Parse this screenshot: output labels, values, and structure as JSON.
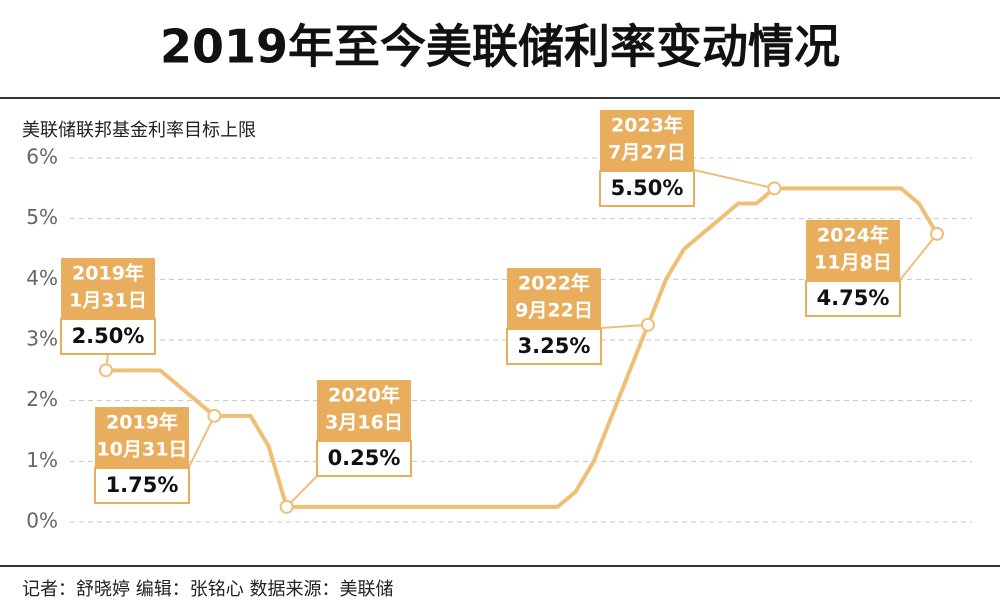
{
  "chart_data": {
    "type": "line",
    "title": "2019年至今美联储利率变动情况",
    "ylabel": "美联储联邦基金利率目标上限",
    "footer": "记者：舒晓婷  编辑：张铭心  数据来源：美联储",
    "categories": [
      null,
      null,
      null,
      null,
      null,
      null,
      null,
      null,
      null,
      null,
      null,
      null,
      null,
      null,
      null,
      null,
      null,
      null,
      null,
      null,
      null,
      null,
      null,
      null,
      null,
      null,
      null,
      null,
      null,
      null,
      null,
      null,
      null,
      null,
      null,
      null,
      null,
      null,
      null,
      null,
      null,
      null,
      null,
      null,
      null,
      null,
      null
    ],
    "values": [
      2.5,
      2.5,
      2.5,
      2.5,
      2.25,
      2.0,
      1.75,
      1.75,
      1.75,
      1.25,
      0.25,
      0.25,
      0.25,
      0.25,
      0.25,
      0.25,
      0.25,
      0.25,
      0.25,
      0.25,
      0.25,
      0.25,
      0.25,
      0.25,
      0.25,
      0.25,
      0.5,
      1.0,
      1.75,
      2.5,
      3.25,
      4.0,
      4.5,
      4.75,
      5.0,
      5.25,
      5.25,
      5.5,
      5.5,
      5.5,
      5.5,
      5.5,
      5.5,
      5.5,
      5.5,
      5.25,
      4.75
    ],
    "color": "#efbf77",
    "ylim": [
      0,
      6
    ],
    "yticks": [
      {
        "value": 0,
        "label": "0%"
      },
      {
        "value": 1,
        "label": "1%"
      },
      {
        "value": 2,
        "label": "2%"
      },
      {
        "value": 3,
        "label": "3%"
      },
      {
        "value": 4,
        "label": "4%"
      },
      {
        "value": 5,
        "label": "5%"
      },
      {
        "value": 6,
        "label": "6%"
      }
    ],
    "grid": true,
    "annotations": [
      {
        "date": [
          "2019年",
          "1月31日"
        ],
        "value_label": "2.50%"
      },
      {
        "date": [
          "2019年",
          "10月31日"
        ],
        "value_label": "1.75%"
      },
      {
        "date": [
          "2020年",
          "3月16日"
        ],
        "value_label": "0.25%"
      },
      {
        "date": [
          "2022年",
          "9月22日"
        ],
        "value_label": "3.25%"
      },
      {
        "date": [
          "2023年",
          "7月27日"
        ],
        "value_label": "5.50%"
      },
      {
        "date": [
          "2024年",
          "11月8日"
        ],
        "value_label": "4.75%"
      }
    ]
  }
}
